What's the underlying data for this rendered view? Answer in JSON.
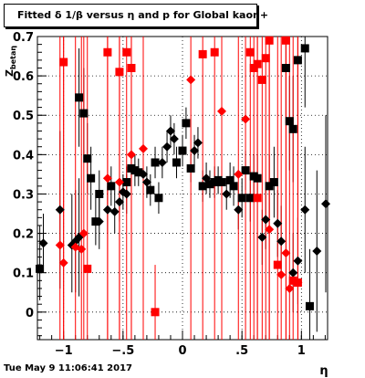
{
  "title": "Fitted δ 1/β versus η and p for Global kaon+",
  "ylabel": "Z_{betaη}",
  "xlabel": "η",
  "datestamp": "Tue May  9 11:06:41 2017",
  "colors": {
    "series_black": "#000000",
    "series_red": "#ff0000",
    "grid": "#000000"
  },
  "chart_data": {
    "type": "scatter",
    "title": "Fitted δ 1/β versus η and p for Global kaon+",
    "xlabel": "η",
    "ylabel": "Z_{betaη}",
    "xlim": [
      -1.22,
      1.22
    ],
    "ylim": [
      -0.07,
      0.7
    ],
    "xticks": [
      -1,
      -0.5,
      0,
      0.5,
      1
    ],
    "yticks": [
      0,
      0.1,
      0.2,
      0.3,
      0.4,
      0.5,
      0.6,
      0.7
    ],
    "grid": true,
    "series": [
      {
        "color": "#000000",
        "points": [
          {
            "x": -1.2,
            "y": 0.11,
            "shape": "square",
            "lo": 0.03,
            "hi": 0.22
          },
          {
            "x": -1.17,
            "y": 0.175,
            "shape": "diamond",
            "lo": 0.1,
            "hi": 0.25
          },
          {
            "x": -1.03,
            "y": 0.26,
            "shape": "diamond",
            "lo": 0.06,
            "hi": 0.46
          },
          {
            "x": -0.93,
            "y": 0.17,
            "shape": "diamond",
            "lo": 0.05,
            "hi": 0.3
          },
          {
            "x": -0.9,
            "y": 0.18,
            "shape": "diamond",
            "lo": 0.05,
            "hi": 0.31
          },
          {
            "x": -0.87,
            "y": 0.19,
            "shape": "diamond",
            "lo": 0.04,
            "hi": 0.34
          },
          {
            "x": -0.87,
            "y": 0.545,
            "shape": "square",
            "lo": 0.42,
            "hi": 0.67
          },
          {
            "x": -0.83,
            "y": 0.505,
            "shape": "square",
            "lo": 0.4,
            "hi": 0.62
          },
          {
            "x": -0.8,
            "y": 0.39,
            "shape": "square",
            "lo": 0.3,
            "hi": 0.48
          },
          {
            "x": -0.77,
            "y": 0.34,
            "shape": "square",
            "lo": 0.26,
            "hi": 0.42
          },
          {
            "x": -0.73,
            "y": 0.23,
            "shape": "square",
            "lo": 0.17,
            "hi": 0.29
          },
          {
            "x": -0.7,
            "y": 0.3,
            "shape": "square",
            "lo": 0.24,
            "hi": 0.36
          },
          {
            "x": -0.7,
            "y": 0.23,
            "shape": "diamond",
            "lo": 0.16,
            "hi": 0.3
          },
          {
            "x": -0.63,
            "y": 0.26,
            "shape": "diamond",
            "lo": 0.2,
            "hi": 0.32
          },
          {
            "x": -0.6,
            "y": 0.32,
            "shape": "square",
            "lo": 0.27,
            "hi": 0.37
          },
          {
            "x": -0.57,
            "y": 0.255,
            "shape": "diamond",
            "lo": 0.2,
            "hi": 0.31
          },
          {
            "x": -0.53,
            "y": 0.28,
            "shape": "diamond",
            "lo": 0.23,
            "hi": 0.33
          },
          {
            "x": -0.5,
            "y": 0.305,
            "shape": "diamond",
            "lo": 0.26,
            "hi": 0.35
          },
          {
            "x": -0.47,
            "y": 0.3,
            "shape": "diamond",
            "lo": 0.25,
            "hi": 0.35
          },
          {
            "x": -0.47,
            "y": 0.33,
            "shape": "square",
            "lo": 0.29,
            "hi": 0.37
          },
          {
            "x": -0.43,
            "y": 0.365,
            "shape": "square",
            "lo": 0.33,
            "hi": 0.4
          },
          {
            "x": -0.4,
            "y": 0.36,
            "shape": "square",
            "lo": 0.32,
            "hi": 0.4
          },
          {
            "x": -0.37,
            "y": 0.355,
            "shape": "square",
            "lo": 0.32,
            "hi": 0.39
          },
          {
            "x": -0.33,
            "y": 0.35,
            "shape": "diamond",
            "lo": 0.31,
            "hi": 0.39
          },
          {
            "x": -0.3,
            "y": 0.33,
            "shape": "diamond",
            "lo": 0.29,
            "hi": 0.37
          },
          {
            "x": -0.27,
            "y": 0.31,
            "shape": "square",
            "lo": 0.27,
            "hi": 0.35
          },
          {
            "x": -0.23,
            "y": 0.38,
            "shape": "square",
            "lo": 0.34,
            "hi": 0.42
          },
          {
            "x": -0.2,
            "y": 0.29,
            "shape": "square",
            "lo": 0.25,
            "hi": 0.33
          },
          {
            "x": -0.17,
            "y": 0.38,
            "shape": "diamond",
            "lo": 0.34,
            "hi": 0.42
          },
          {
            "x": -0.13,
            "y": 0.42,
            "shape": "diamond",
            "lo": 0.38,
            "hi": 0.46
          },
          {
            "x": -0.1,
            "y": 0.46,
            "shape": "diamond",
            "lo": 0.42,
            "hi": 0.5
          },
          {
            "x": -0.07,
            "y": 0.44,
            "shape": "diamond",
            "lo": 0.4,
            "hi": 0.48
          },
          {
            "x": -0.05,
            "y": 0.38,
            "shape": "square",
            "lo": 0.34,
            "hi": 0.42
          },
          {
            "x": 0.0,
            "y": 0.41,
            "shape": "square",
            "lo": 0.37,
            "hi": 0.45
          },
          {
            "x": 0.03,
            "y": 0.48,
            "shape": "square",
            "lo": 0.44,
            "hi": 0.52
          },
          {
            "x": 0.07,
            "y": 0.365,
            "shape": "square",
            "lo": 0.33,
            "hi": 0.4
          },
          {
            "x": 0.1,
            "y": 0.41,
            "shape": "diamond",
            "lo": 0.37,
            "hi": 0.45
          },
          {
            "x": 0.13,
            "y": 0.43,
            "shape": "diamond",
            "lo": 0.39,
            "hi": 0.47
          },
          {
            "x": 0.17,
            "y": 0.32,
            "shape": "square",
            "lo": 0.28,
            "hi": 0.36
          },
          {
            "x": 0.2,
            "y": 0.34,
            "shape": "diamond",
            "lo": 0.3,
            "hi": 0.38
          },
          {
            "x": 0.23,
            "y": 0.325,
            "shape": "square",
            "lo": 0.29,
            "hi": 0.36
          },
          {
            "x": 0.27,
            "y": 0.33,
            "shape": "square",
            "lo": 0.29,
            "hi": 0.37
          },
          {
            "x": 0.3,
            "y": 0.335,
            "shape": "square",
            "lo": 0.3,
            "hi": 0.37
          },
          {
            "x": 0.33,
            "y": 0.33,
            "shape": "square",
            "lo": 0.29,
            "hi": 0.37
          },
          {
            "x": 0.37,
            "y": 0.3,
            "shape": "diamond",
            "lo": 0.26,
            "hi": 0.34
          },
          {
            "x": 0.4,
            "y": 0.335,
            "shape": "square",
            "lo": 0.29,
            "hi": 0.38
          },
          {
            "x": 0.43,
            "y": 0.32,
            "shape": "square",
            "lo": 0.27,
            "hi": 0.37
          },
          {
            "x": 0.47,
            "y": 0.26,
            "shape": "diamond",
            "lo": 0.21,
            "hi": 0.31
          },
          {
            "x": 0.5,
            "y": 0.29,
            "shape": "square",
            "lo": 0.24,
            "hi": 0.34
          },
          {
            "x": 0.53,
            "y": 0.36,
            "shape": "square",
            "lo": 0.31,
            "hi": 0.41
          },
          {
            "x": 0.57,
            "y": 0.29,
            "shape": "square",
            "lo": 0.23,
            "hi": 0.35
          },
          {
            "x": 0.6,
            "y": 0.345,
            "shape": "square",
            "lo": 0.29,
            "hi": 0.4
          },
          {
            "x": 0.63,
            "y": 0.34,
            "shape": "square",
            "lo": 0.28,
            "hi": 0.4
          },
          {
            "x": 0.67,
            "y": 0.19,
            "shape": "diamond",
            "lo": 0.12,
            "hi": 0.26
          },
          {
            "x": 0.7,
            "y": 0.235,
            "shape": "diamond",
            "lo": 0.16,
            "hi": 0.31
          },
          {
            "x": 0.73,
            "y": 0.32,
            "shape": "square",
            "lo": 0.24,
            "hi": 0.4
          },
          {
            "x": 0.77,
            "y": 0.33,
            "shape": "square",
            "lo": 0.24,
            "hi": 0.42
          },
          {
            "x": 0.8,
            "y": 0.225,
            "shape": "diamond",
            "lo": 0.14,
            "hi": 0.31
          },
          {
            "x": 0.83,
            "y": 0.18,
            "shape": "diamond",
            "lo": 0.09,
            "hi": 0.27
          },
          {
            "x": 0.87,
            "y": 0.62,
            "shape": "square",
            "lo": 0.48,
            "hi": 0.7
          },
          {
            "x": 0.9,
            "y": 0.485,
            "shape": "square",
            "lo": 0.36,
            "hi": 0.6
          },
          {
            "x": 0.93,
            "y": 0.465,
            "shape": "square",
            "lo": 0.33,
            "hi": 0.6
          },
          {
            "x": 0.93,
            "y": 0.1,
            "shape": "diamond",
            "lo": 0.0,
            "hi": 0.2
          },
          {
            "x": 0.97,
            "y": 0.13,
            "shape": "diamond",
            "lo": 0.02,
            "hi": 0.24
          },
          {
            "x": 0.97,
            "y": 0.64,
            "shape": "square",
            "lo": 0.5,
            "hi": 0.7
          },
          {
            "x": 1.03,
            "y": 0.67,
            "shape": "square",
            "lo": 0.52,
            "hi": 0.7
          },
          {
            "x": 1.03,
            "y": 0.26,
            "shape": "diamond",
            "lo": 0.1,
            "hi": 0.42
          },
          {
            "x": 1.07,
            "y": 0.015,
            "shape": "square",
            "lo": -0.07,
            "hi": 0.16
          },
          {
            "x": 1.13,
            "y": 0.155,
            "shape": "diamond",
            "lo": -0.05,
            "hi": 0.36
          },
          {
            "x": 1.23,
            "y": 0.275,
            "shape": "diamond",
            "lo": 0.05,
            "hi": 0.5
          }
        ]
      },
      {
        "color": "#ff0000",
        "points": [
          {
            "x": -1.03,
            "y": 0.17,
            "shape": "diamond",
            "lo": -0.07,
            "hi": 0.7
          },
          {
            "x": -1.0,
            "y": 0.635,
            "shape": "square",
            "lo": -0.07,
            "hi": 0.7
          },
          {
            "x": -1.0,
            "y": 0.125,
            "shape": "diamond",
            "lo": -0.07,
            "hi": 0.7
          },
          {
            "x": -0.9,
            "y": 0.165,
            "shape": "diamond",
            "lo": -0.07,
            "hi": 0.7
          },
          {
            "x": -0.85,
            "y": 0.16,
            "shape": "diamond",
            "lo": -0.07,
            "hi": 0.7
          },
          {
            "x": -0.8,
            "y": 0.11,
            "shape": "square",
            "lo": -0.07,
            "hi": 0.7
          },
          {
            "x": -0.83,
            "y": 0.2,
            "shape": "diamond",
            "lo": -0.07,
            "hi": 0.7
          },
          {
            "x": -0.63,
            "y": 0.66,
            "shape": "square",
            "lo": -0.07,
            "hi": 0.7
          },
          {
            "x": -0.63,
            "y": 0.34,
            "shape": "diamond",
            "lo": -0.07,
            "hi": 0.7
          },
          {
            "x": -0.53,
            "y": 0.61,
            "shape": "square",
            "lo": -0.07,
            "hi": 0.7
          },
          {
            "x": -0.53,
            "y": 0.33,
            "shape": "diamond",
            "lo": -0.07,
            "hi": 0.7
          },
          {
            "x": -0.47,
            "y": 0.66,
            "shape": "square",
            "lo": -0.07,
            "hi": 0.7
          },
          {
            "x": -0.43,
            "y": 0.62,
            "shape": "square",
            "lo": -0.07,
            "hi": 0.7
          },
          {
            "x": -0.43,
            "y": 0.4,
            "shape": "diamond",
            "lo": -0.07,
            "hi": 0.7
          },
          {
            "x": -0.33,
            "y": 0.415,
            "shape": "diamond",
            "lo": -0.07,
            "hi": 0.7
          },
          {
            "x": -0.23,
            "y": 0.0,
            "shape": "square",
            "lo": -0.07,
            "hi": 0.12
          },
          {
            "x": 0.07,
            "y": 0.59,
            "shape": "diamond",
            "lo": -0.07,
            "hi": 0.7
          },
          {
            "x": 0.17,
            "y": 0.655,
            "shape": "square",
            "lo": -0.07,
            "hi": 0.7
          },
          {
            "x": 0.27,
            "y": 0.66,
            "shape": "square",
            "lo": -0.07,
            "hi": 0.7
          },
          {
            "x": 0.33,
            "y": 0.51,
            "shape": "diamond",
            "lo": -0.07,
            "hi": 0.7
          },
          {
            "x": 0.47,
            "y": 0.35,
            "shape": "diamond",
            "lo": -0.07,
            "hi": 0.7
          },
          {
            "x": 0.53,
            "y": 0.49,
            "shape": "diamond",
            "lo": -0.07,
            "hi": 0.7
          },
          {
            "x": 0.57,
            "y": 0.66,
            "shape": "square",
            "lo": -0.07,
            "hi": 0.7
          },
          {
            "x": 0.6,
            "y": 0.62,
            "shape": "square",
            "lo": -0.07,
            "hi": 0.7
          },
          {
            "x": 0.63,
            "y": 0.63,
            "shape": "square",
            "lo": -0.07,
            "hi": 0.7
          },
          {
            "x": 0.67,
            "y": 0.59,
            "shape": "square",
            "lo": -0.07,
            "hi": 0.7
          },
          {
            "x": 0.7,
            "y": 0.645,
            "shape": "square",
            "lo": -0.07,
            "hi": 0.7
          },
          {
            "x": 0.73,
            "y": 0.69,
            "shape": "square",
            "lo": -0.07,
            "hi": 0.7
          },
          {
            "x": 0.63,
            "y": 0.29,
            "shape": "square",
            "lo": -0.07,
            "hi": 0.7
          },
          {
            "x": 0.73,
            "y": 0.21,
            "shape": "diamond",
            "lo": -0.07,
            "hi": 0.7
          },
          {
            "x": 0.8,
            "y": 0.12,
            "shape": "square",
            "lo": -0.07,
            "hi": 0.7
          },
          {
            "x": 0.83,
            "y": 0.095,
            "shape": "diamond",
            "lo": -0.07,
            "hi": 0.7
          },
          {
            "x": 0.87,
            "y": 0.15,
            "shape": "diamond",
            "lo": -0.07,
            "hi": 0.7
          },
          {
            "x": 0.9,
            "y": 0.06,
            "shape": "diamond",
            "lo": -0.07,
            "hi": 0.7
          },
          {
            "x": 0.93,
            "y": 0.08,
            "shape": "square",
            "lo": -0.07,
            "hi": 0.7
          },
          {
            "x": 0.97,
            "y": 0.075,
            "shape": "square",
            "lo": -0.07,
            "hi": 0.7
          },
          {
            "x": 0.87,
            "y": 0.69,
            "shape": "square",
            "lo": -0.07,
            "hi": 0.7
          },
          {
            "x": 0.97,
            "y": 0.075,
            "shape": "diamond",
            "lo": -0.07,
            "hi": 0.7
          }
        ]
      }
    ]
  }
}
